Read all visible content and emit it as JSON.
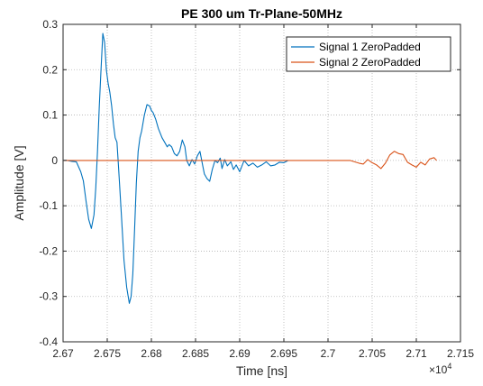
{
  "chart_data": {
    "type": "line",
    "title": "PE 300 um Tr-Plane-50MHz",
    "xlabel": "Time [ns]",
    "ylabel": "Amplitude [V]",
    "x_multiplier_label": "×10",
    "x_multiplier_exponent": "4",
    "xlim": [
      2.67,
      2.715
    ],
    "ylim": [
      -0.4,
      0.3
    ],
    "xticks": [
      2.67,
      2.675,
      2.68,
      2.685,
      2.69,
      2.695,
      2.7,
      2.705,
      2.71,
      2.715
    ],
    "xtick_labels": [
      "2.67",
      "2.675",
      "2.68",
      "2.685",
      "2.69",
      "2.695",
      "2.7",
      "2.705",
      "2.71",
      "2.715"
    ],
    "yticks": [
      -0.4,
      -0.3,
      -0.2,
      -0.1,
      0,
      0.1,
      0.2,
      0.3
    ],
    "ytick_labels": [
      "-0.4",
      "-0.3",
      "-0.2",
      "-0.1",
      "0",
      "0.1",
      "0.2",
      "0.3"
    ],
    "grid": true,
    "legend_position": "top-right",
    "series": [
      {
        "name": "Signal 1 ZeroPadded",
        "color": "#0072BD",
        "x": [
          2.6701,
          2.6705,
          2.671,
          2.6715,
          2.672,
          2.6723,
          2.6726,
          2.6729,
          2.6732,
          2.6735,
          2.6737,
          2.6739,
          2.6741,
          2.6743,
          2.6745,
          2.6747,
          2.6749,
          2.6751,
          2.6753,
          2.6755,
          2.6757,
          2.6759,
          2.6761,
          2.6763,
          2.6766,
          2.6769,
          2.6772,
          2.6775,
          2.6777,
          2.6779,
          2.6781,
          2.6783,
          2.6785,
          2.6787,
          2.6789,
          2.6792,
          2.6795,
          2.6798,
          2.68,
          2.6802,
          2.6805,
          2.6808,
          2.681,
          2.6812,
          2.6815,
          2.6818,
          2.682,
          2.6823,
          2.6826,
          2.6829,
          2.6832,
          2.6835,
          2.6838,
          2.684,
          2.6843,
          2.6846,
          2.6849,
          2.6852,
          2.6855,
          2.6858,
          2.686,
          2.6863,
          2.6866,
          2.6869,
          2.6872,
          2.6875,
          2.6878,
          2.688,
          2.6883,
          2.6886,
          2.689,
          2.6893,
          2.6896,
          2.69,
          2.6905,
          2.691,
          2.6915,
          2.692,
          2.6925,
          2.693,
          2.6935,
          2.694,
          2.6945,
          2.695,
          2.6955
        ],
        "values": [
          0,
          0,
          -0.002,
          -0.003,
          -0.025,
          -0.045,
          -0.09,
          -0.13,
          -0.15,
          -0.12,
          -0.06,
          0.02,
          0.12,
          0.2,
          0.28,
          0.26,
          0.2,
          0.17,
          0.15,
          0.12,
          0.08,
          0.05,
          0.04,
          -0.02,
          -0.12,
          -0.22,
          -0.28,
          -0.315,
          -0.3,
          -0.25,
          -0.15,
          -0.05,
          0.02,
          0.05,
          0.065,
          0.1,
          0.123,
          0.12,
          0.11,
          0.105,
          0.09,
          0.07,
          0.06,
          0.05,
          0.04,
          0.03,
          0.035,
          0.03,
          0.015,
          0.01,
          0.02,
          0.045,
          0.03,
          0.0,
          -0.012,
          0.002,
          -0.008,
          0.01,
          0.02,
          -0.01,
          -0.03,
          -0.04,
          -0.046,
          -0.02,
          0.0,
          -0.005,
          0.005,
          -0.018,
          0.002,
          -0.012,
          -0.003,
          -0.02,
          -0.01,
          -0.025,
          0.0,
          -0.012,
          -0.006,
          -0.015,
          -0.01,
          -0.003,
          -0.012,
          -0.01,
          -0.004,
          -0.005,
          0.0
        ]
      },
      {
        "name": "Signal 2 ZeroPadded",
        "color": "#D95319",
        "x": [
          2.6701,
          2.7025,
          2.703,
          2.7035,
          2.704,
          2.7045,
          2.705,
          2.7055,
          2.706,
          2.7065,
          2.707,
          2.7075,
          2.708,
          2.7085,
          2.709,
          2.7095,
          2.71,
          2.7105,
          2.711,
          2.7115,
          2.712,
          2.7123
        ],
        "values": [
          0,
          0,
          -0.003,
          -0.006,
          -0.008,
          0.002,
          -0.005,
          -0.01,
          -0.018,
          -0.006,
          0.012,
          0.02,
          0.015,
          0.013,
          -0.004,
          -0.01,
          -0.015,
          -0.004,
          -0.01,
          0.003,
          0.006,
          0.0
        ]
      }
    ]
  }
}
